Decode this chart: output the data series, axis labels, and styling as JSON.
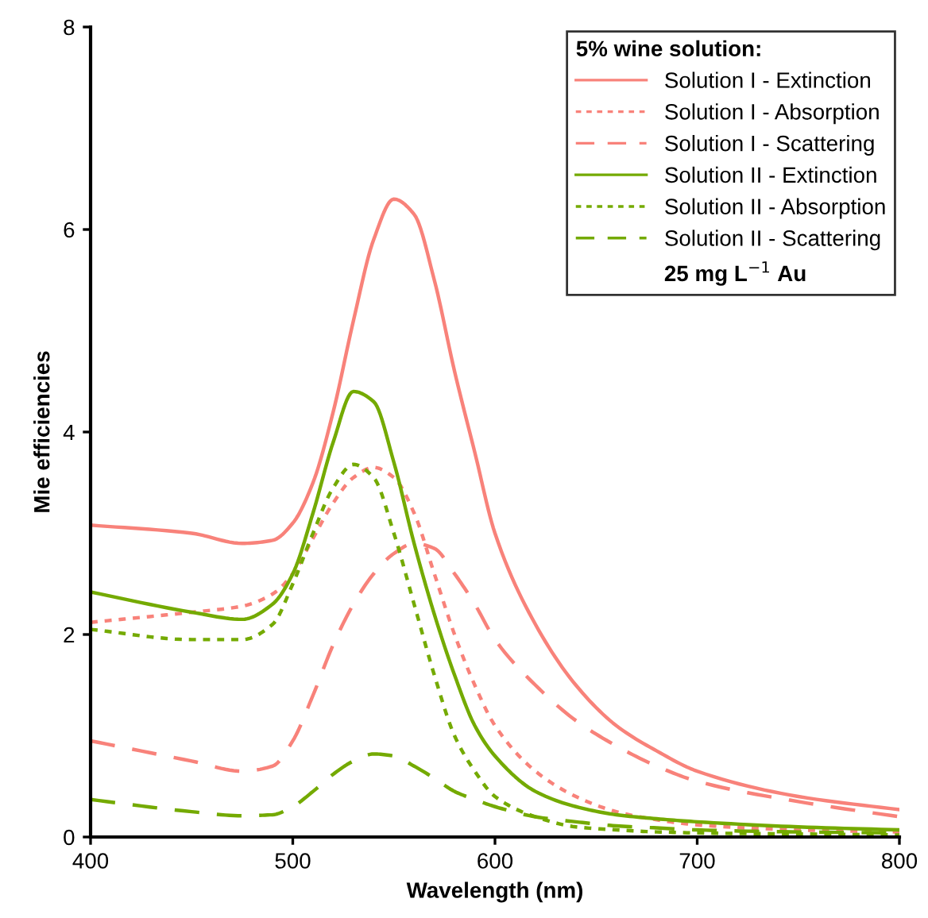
{
  "chart_data": {
    "type": "line",
    "xlabel": "Wavelength (nm)",
    "ylabel": "Mie efficiencies",
    "legend_title": "5% wine solution:",
    "annotations": [
      "25 mg L$^{−1}$ Au"
    ],
    "x": [
      400,
      450,
      475,
      490,
      500,
      510,
      520,
      530,
      540,
      550,
      560,
      570,
      580,
      590,
      600,
      620,
      640,
      660,
      680,
      700,
      750,
      800
    ],
    "series": [
      {
        "name": "Solution I - Extinction",
        "color": "#f8827a",
        "line_style": "solid",
        "values": [
          3.08,
          3.0,
          2.9,
          2.93,
          3.1,
          3.5,
          4.2,
          5.1,
          5.9,
          6.3,
          6.15,
          5.5,
          4.6,
          3.8,
          3.0,
          2.1,
          1.5,
          1.1,
          0.85,
          0.65,
          0.4,
          0.27
        ]
      },
      {
        "name": "Solution I - Absorption",
        "color": "#f8827a",
        "line_style": "dotted",
        "values": [
          2.12,
          2.22,
          2.28,
          2.4,
          2.6,
          2.95,
          3.3,
          3.55,
          3.65,
          3.55,
          3.2,
          2.6,
          2.0,
          1.5,
          1.1,
          0.65,
          0.4,
          0.25,
          0.17,
          0.12,
          0.07,
          0.05
        ]
      },
      {
        "name": "Solution I - Scattering",
        "color": "#f8827a",
        "line_style": "dashed",
        "values": [
          0.95,
          0.75,
          0.65,
          0.7,
          0.95,
          1.4,
          1.9,
          2.3,
          2.6,
          2.8,
          2.9,
          2.85,
          2.6,
          2.3,
          1.95,
          1.5,
          1.15,
          0.9,
          0.7,
          0.55,
          0.35,
          0.2
        ]
      },
      {
        "name": "Solution II - Extinction",
        "color": "#74aa00",
        "line_style": "solid",
        "values": [
          2.42,
          2.22,
          2.15,
          2.3,
          2.6,
          3.2,
          3.9,
          4.4,
          4.3,
          3.7,
          2.9,
          2.2,
          1.6,
          1.1,
          0.8,
          0.45,
          0.3,
          0.22,
          0.18,
          0.15,
          0.1,
          0.07
        ]
      },
      {
        "name": "Solution II - Absorption",
        "color": "#74aa00",
        "line_style": "dotted",
        "values": [
          2.05,
          1.95,
          1.95,
          2.1,
          2.5,
          3.0,
          3.45,
          3.68,
          3.55,
          3.0,
          2.3,
          1.6,
          1.0,
          0.65,
          0.4,
          0.2,
          0.1,
          0.07,
          0.05,
          0.04,
          0.03,
          0.02
        ]
      },
      {
        "name": "Solution II - Scattering",
        "color": "#74aa00",
        "line_style": "dashed",
        "values": [
          0.37,
          0.25,
          0.21,
          0.22,
          0.3,
          0.45,
          0.62,
          0.75,
          0.82,
          0.8,
          0.7,
          0.58,
          0.45,
          0.37,
          0.3,
          0.2,
          0.15,
          0.11,
          0.09,
          0.07,
          0.05,
          0.04
        ]
      }
    ],
    "xlim": [
      400,
      800
    ],
    "ylim": [
      0,
      8
    ],
    "xticks": [
      400,
      500,
      600,
      700,
      800
    ],
    "yticks": [
      0,
      2,
      4,
      6,
      8
    ],
    "grid": false,
    "legend": "top right"
  }
}
